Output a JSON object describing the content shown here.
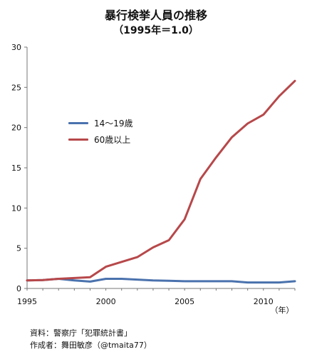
{
  "header": {
    "title": "暴行検挙人員の推移",
    "subtitle": "（1995年＝1.0）"
  },
  "legend": [
    {
      "label": "14〜19歳",
      "color": "#4a72ad"
    },
    {
      "label": "60歳以上",
      "color": "#b7484a"
    }
  ],
  "footer": {
    "source": "資料：警察庁「犯罪統計書」",
    "author": "作成者：舞田敏彦（@tmaita77）"
  },
  "chart_data": {
    "type": "line",
    "title": "暴行検挙人員の推移",
    "subtitle": "（1995年＝1.0）",
    "xlabel": "（年）",
    "ylabel": "",
    "xlim": [
      1995,
      2012
    ],
    "ylim": [
      0,
      30
    ],
    "xticks": [
      1995,
      2000,
      2005,
      2010
    ],
    "yticks": [
      0,
      5,
      10,
      15,
      20,
      25,
      30
    ],
    "xtick_labels": [
      "1995",
      "2000",
      "2005",
      "2010"
    ],
    "ytick_labels": [
      "0",
      "5",
      "10",
      "15",
      "20",
      "25",
      "30"
    ],
    "grid": false,
    "legend_position": "upper-left",
    "x": [
      1995,
      1996,
      1997,
      1998,
      1999,
      2000,
      2001,
      2002,
      2003,
      2004,
      2005,
      2006,
      2007,
      2008,
      2009,
      2010,
      2011,
      2012
    ],
    "series": [
      {
        "name": "14〜19歳",
        "color": "#4a72ad",
        "values": [
          1.0,
          1.05,
          1.2,
          1.0,
          0.85,
          1.2,
          1.2,
          1.1,
          1.0,
          0.95,
          0.9,
          0.9,
          0.9,
          0.9,
          0.75,
          0.75,
          0.75,
          0.9
        ]
      },
      {
        "name": "60歳以上",
        "color": "#b7484a",
        "values": [
          1.0,
          1.05,
          1.2,
          1.3,
          1.4,
          2.7,
          3.3,
          3.9,
          5.1,
          6.0,
          8.6,
          13.6,
          16.3,
          18.8,
          20.5,
          21.6,
          23.9,
          25.8
        ]
      }
    ]
  }
}
